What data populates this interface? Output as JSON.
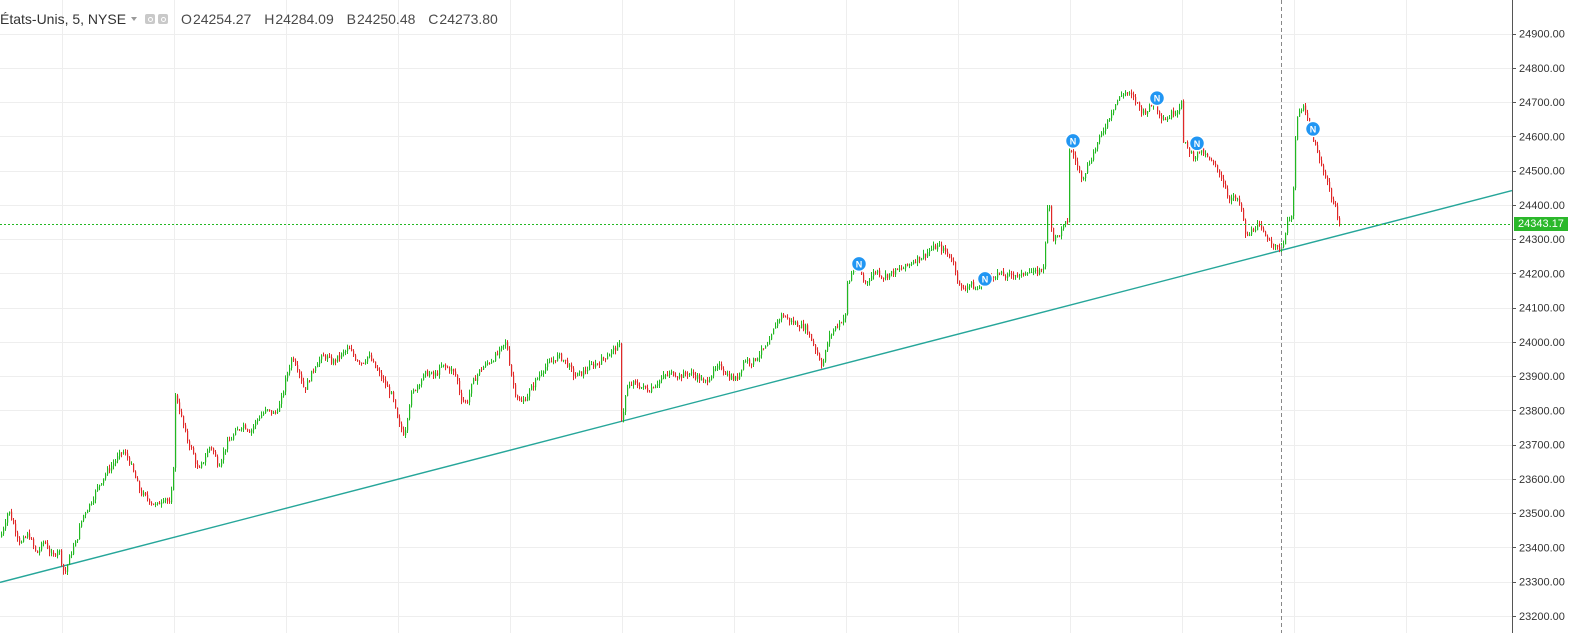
{
  "legend": {
    "symbol": "États-Unis, 5, NYSE",
    "open_label": "O",
    "open": "24254.27",
    "high_label": "H",
    "high": "24284.09",
    "low_label": "B",
    "low": "24250.48",
    "close_label": "C",
    "close": "24273.80"
  },
  "current_price": "24343.17",
  "colors": {
    "up": "#22b822",
    "down": "#e02828",
    "trendline": "#26a69a",
    "price_line": "#22b822",
    "grid": "#eeeeee",
    "news_icon": "#2196f3"
  },
  "news_icon_label": "N",
  "chart_data": {
    "type": "candlestick",
    "interval": "5",
    "exchange": "NYSE",
    "y_ticks": [
      "23200.00",
      "23300.00",
      "23400.00",
      "23500.00",
      "23600.00",
      "23700.00",
      "23800.00",
      "23900.00",
      "24000.00",
      "24100.00",
      "24200.00",
      "24300.00",
      "24400.00",
      "24500.00",
      "24600.00",
      "24700.00",
      "24800.00",
      "24900.00"
    ],
    "ylim": [
      23170,
      24990
    ],
    "grid": true,
    "series_path": [
      [
        0,
        23430
      ],
      [
        8,
        23510
      ],
      [
        14,
        23460
      ],
      [
        20,
        23410
      ],
      [
        28,
        23440
      ],
      [
        36,
        23380
      ],
      [
        44,
        23420
      ],
      [
        52,
        23370
      ],
      [
        58,
        23400
      ],
      [
        64,
        23320
      ],
      [
        70,
        23380
      ],
      [
        76,
        23420
      ],
      [
        82,
        23490
      ],
      [
        90,
        23530
      ],
      [
        98,
        23580
      ],
      [
        106,
        23620
      ],
      [
        114,
        23650
      ],
      [
        122,
        23680
      ],
      [
        128,
        23660
      ],
      [
        134,
        23610
      ],
      [
        140,
        23560
      ],
      [
        148,
        23540
      ],
      [
        156,
        23520
      ],
      [
        164,
        23550
      ],
      [
        170,
        23520
      ],
      [
        174,
        23680
      ],
      [
        176,
        23840
      ],
      [
        180,
        23790
      ],
      [
        186,
        23720
      ],
      [
        192,
        23680
      ],
      [
        198,
        23620
      ],
      [
        204,
        23660
      ],
      [
        210,
        23700
      ],
      [
        218,
        23640
      ],
      [
        226,
        23700
      ],
      [
        234,
        23730
      ],
      [
        242,
        23760
      ],
      [
        250,
        23740
      ],
      [
        258,
        23780
      ],
      [
        266,
        23800
      ],
      [
        274,
        23790
      ],
      [
        280,
        23820
      ],
      [
        286,
        23900
      ],
      [
        292,
        23960
      ],
      [
        298,
        23920
      ],
      [
        304,
        23860
      ],
      [
        310,
        23900
      ],
      [
        316,
        23940
      ],
      [
        324,
        23960
      ],
      [
        332,
        23940
      ],
      [
        340,
        23960
      ],
      [
        348,
        23980
      ],
      [
        356,
        23950
      ],
      [
        362,
        23940
      ],
      [
        368,
        23960
      ],
      [
        376,
        23920
      ],
      [
        384,
        23880
      ],
      [
        392,
        23840
      ],
      [
        398,
        23760
      ],
      [
        404,
        23730
      ],
      [
        410,
        23840
      ],
      [
        418,
        23880
      ],
      [
        426,
        23910
      ],
      [
        434,
        23900
      ],
      [
        442,
        23930
      ],
      [
        450,
        23920
      ],
      [
        456,
        23900
      ],
      [
        460,
        23840
      ],
      [
        466,
        23820
      ],
      [
        472,
        23880
      ],
      [
        480,
        23920
      ],
      [
        488,
        23940
      ],
      [
        496,
        23960
      ],
      [
        506,
        24000
      ],
      [
        510,
        23920
      ],
      [
        514,
        23860
      ],
      [
        520,
        23820
      ],
      [
        526,
        23840
      ],
      [
        534,
        23880
      ],
      [
        542,
        23920
      ],
      [
        550,
        23940
      ],
      [
        558,
        23960
      ],
      [
        566,
        23940
      ],
      [
        574,
        23900
      ],
      [
        582,
        23910
      ],
      [
        590,
        23930
      ],
      [
        598,
        23940
      ],
      [
        606,
        23960
      ],
      [
        614,
        23980
      ],
      [
        620,
        23990
      ],
      [
        622,
        23780
      ],
      [
        626,
        23860
      ],
      [
        632,
        23880
      ],
      [
        640,
        23870
      ],
      [
        648,
        23860
      ],
      [
        656,
        23880
      ],
      [
        664,
        23900
      ],
      [
        672,
        23910
      ],
      [
        680,
        23900
      ],
      [
        688,
        23910
      ],
      [
        696,
        23900
      ],
      [
        704,
        23880
      ],
      [
        712,
        23910
      ],
      [
        720,
        23930
      ],
      [
        728,
        23900
      ],
      [
        736,
        23890
      ],
      [
        744,
        23950
      ],
      [
        752,
        23940
      ],
      [
        760,
        23970
      ],
      [
        768,
        23990
      ],
      [
        776,
        24060
      ],
      [
        782,
        24080
      ],
      [
        790,
        24060
      ],
      [
        798,
        24050
      ],
      [
        806,
        24040
      ],
      [
        812,
        24000
      ],
      [
        818,
        23960
      ],
      [
        822,
        23930
      ],
      [
        828,
        24010
      ],
      [
        834,
        24040
      ],
      [
        840,
        24060
      ],
      [
        846,
        24080
      ],
      [
        848,
        24170
      ],
      [
        852,
        24210
      ],
      [
        858,
        24220
      ],
      [
        864,
        24170
      ],
      [
        870,
        24190
      ],
      [
        876,
        24210
      ],
      [
        882,
        24190
      ],
      [
        890,
        24200
      ],
      [
        898,
        24210
      ],
      [
        906,
        24220
      ],
      [
        914,
        24240
      ],
      [
        922,
        24250
      ],
      [
        930,
        24270
      ],
      [
        938,
        24280
      ],
      [
        946,
        24260
      ],
      [
        952,
        24240
      ],
      [
        956,
        24200
      ],
      [
        960,
        24150
      ],
      [
        964,
        24160
      ],
      [
        970,
        24170
      ],
      [
        976,
        24150
      ],
      [
        982,
        24180
      ],
      [
        990,
        24190
      ],
      [
        998,
        24200
      ],
      [
        1006,
        24190
      ],
      [
        1014,
        24200
      ],
      [
        1020,
        24190
      ],
      [
        1026,
        24210
      ],
      [
        1034,
        24200
      ],
      [
        1040,
        24210
      ],
      [
        1044,
        24230
      ],
      [
        1048,
        24440
      ],
      [
        1052,
        24300
      ],
      [
        1058,
        24310
      ],
      [
        1064,
        24340
      ],
      [
        1068,
        24360
      ],
      [
        1070,
        24560
      ],
      [
        1074,
        24540
      ],
      [
        1078,
        24500
      ],
      [
        1082,
        24480
      ],
      [
        1088,
        24520
      ],
      [
        1094,
        24560
      ],
      [
        1100,
        24600
      ],
      [
        1106,
        24640
      ],
      [
        1112,
        24680
      ],
      [
        1118,
        24710
      ],
      [
        1124,
        24730
      ],
      [
        1130,
        24720
      ],
      [
        1136,
        24700
      ],
      [
        1142,
        24670
      ],
      [
        1148,
        24680
      ],
      [
        1154,
        24700
      ],
      [
        1160,
        24660
      ],
      [
        1166,
        24650
      ],
      [
        1172,
        24670
      ],
      [
        1178,
        24680
      ],
      [
        1182,
        24720
      ],
      [
        1184,
        24580
      ],
      [
        1188,
        24560
      ],
      [
        1194,
        24540
      ],
      [
        1200,
        24560
      ],
      [
        1206,
        24540
      ],
      [
        1212,
        24520
      ],
      [
        1218,
        24500
      ],
      [
        1224,
        24460
      ],
      [
        1228,
        24420
      ],
      [
        1234,
        24420
      ],
      [
        1240,
        24400
      ],
      [
        1246,
        24300
      ],
      [
        1252,
        24330
      ],
      [
        1258,
        24340
      ],
      [
        1264,
        24310
      ],
      [
        1270,
        24300
      ],
      [
        1276,
        24270
      ],
      [
        1282,
        24280
      ],
      [
        1288,
        24360
      ],
      [
        1292,
        24380
      ],
      [
        1296,
        24650
      ],
      [
        1302,
        24690
      ],
      [
        1308,
        24640
      ],
      [
        1314,
        24580
      ],
      [
        1320,
        24520
      ],
      [
        1326,
        24480
      ],
      [
        1332,
        24410
      ],
      [
        1336,
        24380
      ],
      [
        1340,
        24340
      ]
    ],
    "trendline": [
      [
        0,
        23298
      ],
      [
        1512,
        24442
      ]
    ],
    "price_line": 24343.17,
    "crosshair_x": 1281,
    "news_events": [
      [
        859,
        24228
      ],
      [
        985,
        24184
      ],
      [
        1073,
        24587
      ],
      [
        1157,
        24712
      ],
      [
        1197,
        24580
      ],
      [
        1313,
        24622
      ]
    ]
  }
}
